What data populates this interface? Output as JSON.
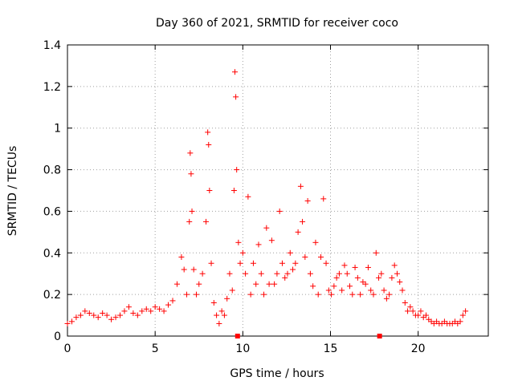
{
  "chart_data": {
    "type": "scatter",
    "title": "Day 360 of 2021, SRMTID for receiver coco",
    "xlabel": "GPS time / hours",
    "ylabel": "SRMTID / TECUs",
    "xlim": [
      0,
      24
    ],
    "ylim": [
      0,
      1.4
    ],
    "xticks": [
      0,
      5,
      10,
      15,
      20
    ],
    "yticks": [
      0,
      0.2,
      0.4,
      0.6,
      0.8,
      1,
      1.2,
      1.4
    ],
    "xtick_labels": [
      "0",
      "5",
      "10",
      "15",
      "20"
    ],
    "ytick_labels": [
      "0",
      "0.2",
      "0.4",
      "0.6",
      "0.8",
      "1",
      "1.2",
      "1.4"
    ],
    "grid": true,
    "series": [
      {
        "name": "SRMTID",
        "marker": "+",
        "color": "#ff0000",
        "x": [
          0.0,
          0.25,
          0.5,
          0.75,
          1.0,
          1.25,
          1.5,
          1.75,
          2.0,
          2.25,
          2.5,
          2.75,
          3.0,
          3.25,
          3.5,
          3.75,
          4.0,
          4.25,
          4.5,
          4.75,
          5.0,
          5.25,
          5.5,
          5.75,
          6.0,
          6.25,
          6.5,
          6.65,
          6.8,
          6.95,
          7.0,
          7.05,
          7.1,
          7.2,
          7.35,
          7.5,
          7.7,
          7.9,
          8.0,
          8.05,
          8.1,
          8.2,
          8.35,
          8.5,
          8.65,
          8.8,
          8.95,
          9.1,
          9.25,
          9.4,
          9.5,
          9.55,
          9.6,
          9.65,
          9.75,
          9.85,
          10.0,
          10.15,
          10.3,
          10.45,
          10.6,
          10.75,
          10.9,
          11.05,
          11.2,
          11.35,
          11.5,
          11.65,
          11.8,
          11.95,
          12.1,
          12.25,
          12.4,
          12.55,
          12.7,
          12.85,
          13.0,
          13.15,
          13.3,
          13.4,
          13.55,
          13.7,
          13.85,
          14.0,
          14.15,
          14.3,
          14.45,
          14.6,
          14.75,
          14.9,
          15.05,
          15.2,
          15.35,
          15.5,
          15.65,
          15.8,
          15.95,
          16.1,
          16.25,
          16.4,
          16.55,
          16.7,
          16.85,
          17.0,
          17.15,
          17.3,
          17.45,
          17.6,
          17.75,
          17.9,
          18.05,
          18.2,
          18.35,
          18.5,
          18.65,
          18.8,
          18.95,
          19.1,
          19.25,
          19.4,
          19.55,
          19.7,
          19.85,
          20.0,
          20.15,
          20.3,
          20.45,
          20.6,
          20.75,
          20.9,
          21.05,
          21.2,
          21.35,
          21.5,
          21.65,
          21.8,
          21.95,
          22.1,
          22.25,
          22.4,
          22.55,
          22.7
        ],
        "y": [
          0.06,
          0.07,
          0.09,
          0.1,
          0.12,
          0.11,
          0.1,
          0.09,
          0.11,
          0.1,
          0.08,
          0.09,
          0.1,
          0.12,
          0.14,
          0.11,
          0.1,
          0.12,
          0.13,
          0.12,
          0.14,
          0.13,
          0.12,
          0.15,
          0.17,
          0.25,
          0.38,
          0.32,
          0.2,
          0.55,
          0.88,
          0.78,
          0.6,
          0.32,
          0.2,
          0.25,
          0.3,
          0.55,
          0.98,
          0.92,
          0.7,
          0.35,
          0.16,
          0.1,
          0.06,
          0.12,
          0.1,
          0.18,
          0.3,
          0.22,
          0.7,
          1.27,
          1.15,
          0.8,
          0.45,
          0.35,
          0.4,
          0.3,
          0.67,
          0.2,
          0.35,
          0.25,
          0.44,
          0.3,
          0.2,
          0.52,
          0.25,
          0.46,
          0.25,
          0.3,
          0.6,
          0.35,
          0.28,
          0.3,
          0.4,
          0.32,
          0.35,
          0.5,
          0.72,
          0.55,
          0.38,
          0.65,
          0.3,
          0.24,
          0.45,
          0.2,
          0.38,
          0.66,
          0.35,
          0.22,
          0.2,
          0.24,
          0.28,
          0.3,
          0.22,
          0.34,
          0.3,
          0.24,
          0.2,
          0.33,
          0.28,
          0.2,
          0.26,
          0.25,
          0.33,
          0.22,
          0.2,
          0.4,
          0.28,
          0.3,
          0.22,
          0.18,
          0.2,
          0.28,
          0.34,
          0.3,
          0.26,
          0.22,
          0.16,
          0.12,
          0.14,
          0.12,
          0.1,
          0.1,
          0.12,
          0.09,
          0.1,
          0.08,
          0.07,
          0.06,
          0.07,
          0.06,
          0.06,
          0.07,
          0.06,
          0.06,
          0.06,
          0.07,
          0.06,
          0.07,
          0.1,
          0.12
        ]
      },
      {
        "name": "square markers",
        "marker": "square",
        "color": "#ff0000",
        "x": [
          9.7,
          17.8
        ],
        "y": [
          0.0,
          0.0
        ]
      }
    ]
  }
}
